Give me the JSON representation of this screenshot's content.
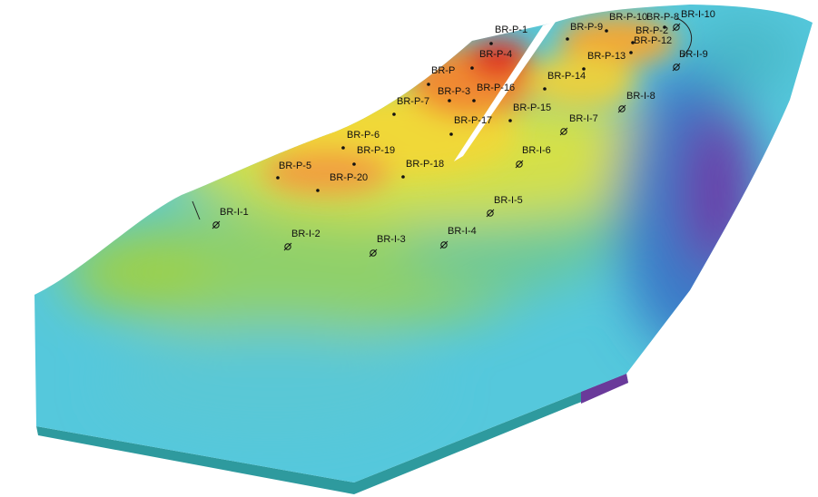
{
  "wells": [
    {
      "label": "BR-P-1"
    },
    {
      "label": "BR-P-4"
    },
    {
      "label": "BR-P"
    },
    {
      "label": "BR-P-3"
    },
    {
      "label": "BR-P-16"
    },
    {
      "label": "BR-P-7"
    },
    {
      "label": "BR-P-17"
    },
    {
      "label": "BR-P-6"
    },
    {
      "label": "BR-P-19"
    },
    {
      "label": "BR-P-5"
    },
    {
      "label": "BR-P-20"
    },
    {
      "label": "BR-P-18"
    },
    {
      "label": "BR-P-9"
    },
    {
      "label": "BR-P-10"
    },
    {
      "label": "BR-P-8"
    },
    {
      "label": "BR-P-2"
    },
    {
      "label": "BR-P-12"
    },
    {
      "label": "BR-P-13"
    },
    {
      "label": "BR-P-14"
    },
    {
      "label": "BR-P-15"
    },
    {
      "label": "BR-I-10"
    },
    {
      "label": "BR-I-9"
    },
    {
      "label": "BR-I-8"
    },
    {
      "label": "BR-I-7"
    },
    {
      "label": "BR-I-6"
    },
    {
      "label": "BR-I-5"
    },
    {
      "label": "BR-I-4"
    },
    {
      "label": "BR-I-3"
    },
    {
      "label": "BR-I-2"
    },
    {
      "label": "BR-I-1"
    }
  ]
}
